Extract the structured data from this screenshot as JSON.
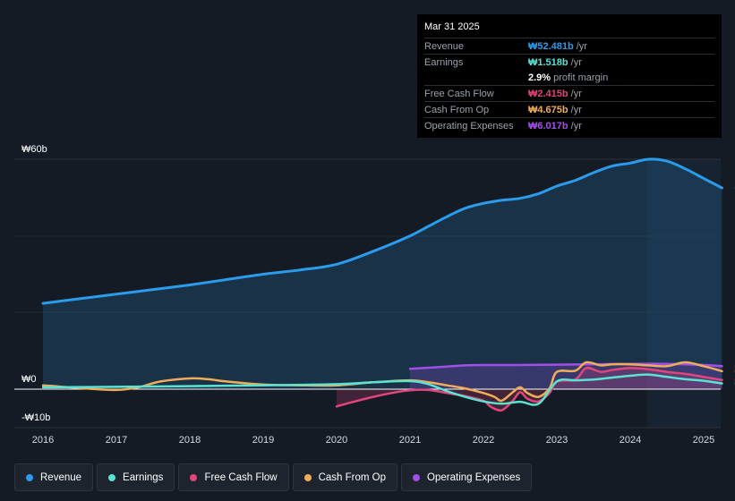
{
  "tooltip": {
    "date": "Mar 31 2025",
    "rows": [
      {
        "label": "Revenue",
        "value": "₩52.481b",
        "unit": "/yr",
        "color": "#2b9bec"
      },
      {
        "label": "Earnings",
        "value": "₩1.518b",
        "unit": "/yr",
        "color": "#5be3d2"
      },
      {
        "label": "",
        "value": "2.9%",
        "unit": "profit margin",
        "color": "#ffffff"
      },
      {
        "label": "Free Cash Flow",
        "value": "₩2.415b",
        "unit": "/yr",
        "color": "#e0457b"
      },
      {
        "label": "Cash From Op",
        "value": "₩4.675b",
        "unit": "/yr",
        "color": "#f0ac5a"
      },
      {
        "label": "Operating Expenses",
        "value": "₩6.017b",
        "unit": "/yr",
        "color": "#a24ee8"
      }
    ]
  },
  "chart_data": {
    "type": "line",
    "ylim": [
      -10,
      60
    ],
    "y_tick_labels": [
      "₩60b",
      "₩0",
      "-₩10b"
    ],
    "x_tick_labels": [
      "2016",
      "2017",
      "2018",
      "2019",
      "2020",
      "2021",
      "2022",
      "2023",
      "2024",
      "2025"
    ],
    "series": [
      {
        "name": "Revenue",
        "color": "#2b9bec",
        "fill": true,
        "points": [
          [
            2016.0,
            22.4
          ],
          [
            2016.5,
            23.6
          ],
          [
            2017.0,
            24.8
          ],
          [
            2017.5,
            26.0
          ],
          [
            2018.0,
            27.2
          ],
          [
            2018.5,
            28.6
          ],
          [
            2019.0,
            30.0
          ],
          [
            2019.5,
            31.1
          ],
          [
            2020.0,
            32.6
          ],
          [
            2020.5,
            36.0
          ],
          [
            2021.0,
            40.0
          ],
          [
            2021.25,
            42.5
          ],
          [
            2021.5,
            45.0
          ],
          [
            2021.75,
            47.2
          ],
          [
            2022.0,
            48.5
          ],
          [
            2022.25,
            49.3
          ],
          [
            2022.5,
            49.8
          ],
          [
            2022.75,
            51.0
          ],
          [
            2023.0,
            53.0
          ],
          [
            2023.25,
            54.5
          ],
          [
            2023.5,
            56.5
          ],
          [
            2023.75,
            58.2
          ],
          [
            2024.0,
            59.0
          ],
          [
            2024.25,
            60.0
          ],
          [
            2024.5,
            59.5
          ],
          [
            2024.75,
            57.5
          ],
          [
            2025.0,
            55.0
          ],
          [
            2025.25,
            52.5
          ]
        ]
      },
      {
        "name": "Earnings",
        "color": "#5be3d2",
        "fill": false,
        "points": [
          [
            2016.0,
            0.5
          ],
          [
            2017.0,
            0.6
          ],
          [
            2018.0,
            0.8
          ],
          [
            2019.0,
            1.0
          ],
          [
            2020.0,
            1.3
          ],
          [
            2020.5,
            1.8
          ],
          [
            2021.0,
            2.1
          ],
          [
            2021.25,
            1.3
          ],
          [
            2021.5,
            -0.5
          ],
          [
            2021.75,
            -2.0
          ],
          [
            2022.0,
            -3.2
          ],
          [
            2022.25,
            -3.8
          ],
          [
            2022.5,
            -3.3
          ],
          [
            2022.75,
            -3.8
          ],
          [
            2023.0,
            2.0
          ],
          [
            2023.25,
            2.3
          ],
          [
            2023.5,
            2.5
          ],
          [
            2023.75,
            3.0
          ],
          [
            2024.0,
            3.5
          ],
          [
            2024.25,
            3.8
          ],
          [
            2024.5,
            3.2
          ],
          [
            2024.75,
            2.6
          ],
          [
            2025.0,
            2.2
          ],
          [
            2025.25,
            1.5
          ]
        ]
      },
      {
        "name": "Free Cash Flow",
        "color": "#e0457b",
        "fill": true,
        "points": [
          [
            2020.0,
            -4.5
          ],
          [
            2020.25,
            -3.2
          ],
          [
            2020.5,
            -2.0
          ],
          [
            2020.75,
            -1.0
          ],
          [
            2021.0,
            -0.3
          ],
          [
            2021.25,
            -0.2
          ],
          [
            2021.5,
            -1.0
          ],
          [
            2021.75,
            -1.8
          ],
          [
            2022.0,
            -3.0
          ],
          [
            2022.1,
            -4.6
          ],
          [
            2022.25,
            -5.5
          ],
          [
            2022.4,
            -3.0
          ],
          [
            2022.5,
            -0.8
          ],
          [
            2022.6,
            -2.5
          ],
          [
            2022.75,
            -3.2
          ],
          [
            2022.9,
            -1.0
          ],
          [
            2023.0,
            2.0
          ],
          [
            2023.25,
            2.5
          ],
          [
            2023.4,
            5.5
          ],
          [
            2023.6,
            4.5
          ],
          [
            2023.75,
            5.0
          ],
          [
            2024.0,
            5.5
          ],
          [
            2024.25,
            5.2
          ],
          [
            2024.5,
            4.5
          ],
          [
            2024.75,
            4.0
          ],
          [
            2025.0,
            3.2
          ],
          [
            2025.25,
            2.4
          ]
        ]
      },
      {
        "name": "Cash From Op",
        "color": "#f0ac5a",
        "fill": false,
        "points": [
          [
            2016.0,
            1.0
          ],
          [
            2016.5,
            0.3
          ],
          [
            2017.0,
            -0.2
          ],
          [
            2017.3,
            0.5
          ],
          [
            2017.6,
            2.0
          ],
          [
            2018.0,
            2.8
          ],
          [
            2018.25,
            2.6
          ],
          [
            2018.5,
            2.0
          ],
          [
            2019.0,
            1.2
          ],
          [
            2019.5,
            1.0
          ],
          [
            2020.0,
            1.0
          ],
          [
            2020.5,
            1.8
          ],
          [
            2021.0,
            2.3
          ],
          [
            2021.25,
            1.8
          ],
          [
            2021.5,
            1.0
          ],
          [
            2021.75,
            0.2
          ],
          [
            2022.0,
            -1.0
          ],
          [
            2022.15,
            -2.0
          ],
          [
            2022.25,
            -3.0
          ],
          [
            2022.4,
            -0.8
          ],
          [
            2022.5,
            0.5
          ],
          [
            2022.6,
            -1.0
          ],
          [
            2022.75,
            -2.0
          ],
          [
            2022.9,
            0.2
          ],
          [
            2023.0,
            4.5
          ],
          [
            2023.25,
            4.8
          ],
          [
            2023.4,
            7.0
          ],
          [
            2023.6,
            6.2
          ],
          [
            2023.75,
            6.5
          ],
          [
            2024.0,
            6.5
          ],
          [
            2024.25,
            6.2
          ],
          [
            2024.5,
            6.0
          ],
          [
            2024.75,
            7.0
          ],
          [
            2025.0,
            6.0
          ],
          [
            2025.25,
            4.7
          ]
        ]
      },
      {
        "name": "Operating Expenses",
        "color": "#a24ee8",
        "fill": true,
        "points": [
          [
            2021.0,
            5.3
          ],
          [
            2021.25,
            5.6
          ],
          [
            2021.5,
            5.9
          ],
          [
            2021.75,
            6.2
          ],
          [
            2022.0,
            6.3
          ],
          [
            2022.5,
            6.3
          ],
          [
            2023.0,
            6.4
          ],
          [
            2023.5,
            6.5
          ],
          [
            2024.0,
            6.6
          ],
          [
            2024.5,
            6.6
          ],
          [
            2025.0,
            6.3
          ],
          [
            2025.25,
            6.0
          ]
        ]
      }
    ]
  }
}
